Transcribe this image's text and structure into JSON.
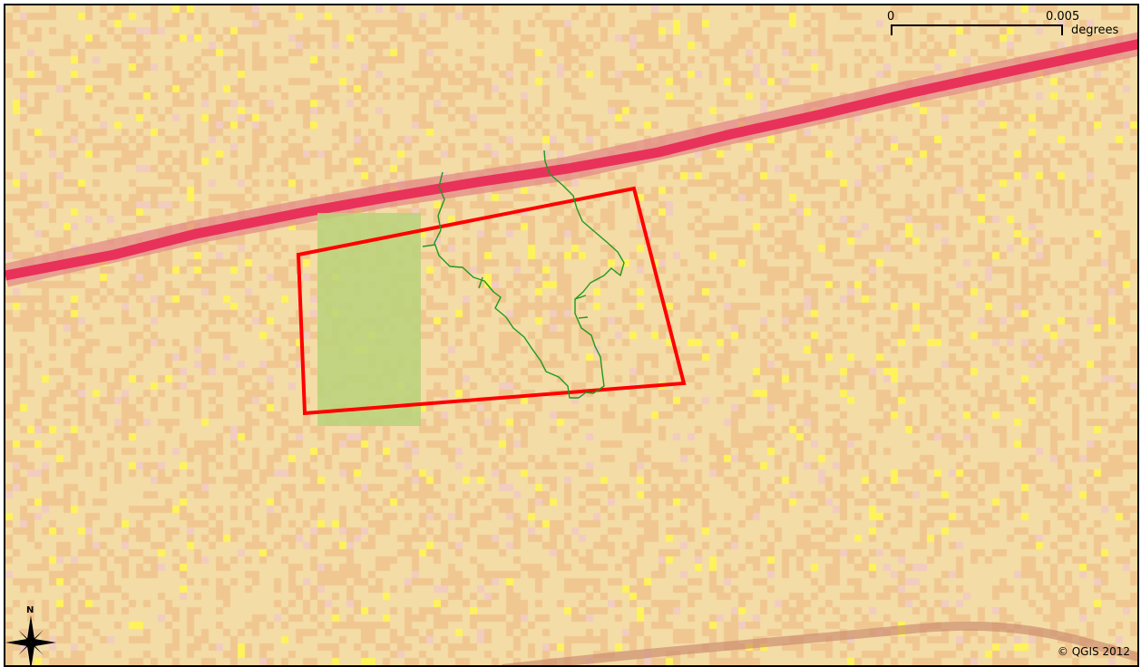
{
  "map": {
    "colors": {
      "background": "#f4dca6",
      "road": "#e8325a",
      "road_halo": "#e28e8a",
      "polygon_outline": "#ff0000",
      "green_patch": "#bcd37a",
      "stream": "#1f9a1f",
      "pixel_orange": "#f0c790",
      "pixel_yellow": "#fff35c",
      "pixel_pink": "#f1ccbf"
    },
    "layers": [
      "raster-landcover",
      "road",
      "area-polygon",
      "green-patch",
      "stream-network"
    ]
  },
  "scale_bar": {
    "start_label": "0",
    "end_label": "0.005",
    "unit": "degrees"
  },
  "north_arrow": {
    "label": "N",
    "icon": "compass-star-icon"
  },
  "copyright": "© QGIS 2012"
}
